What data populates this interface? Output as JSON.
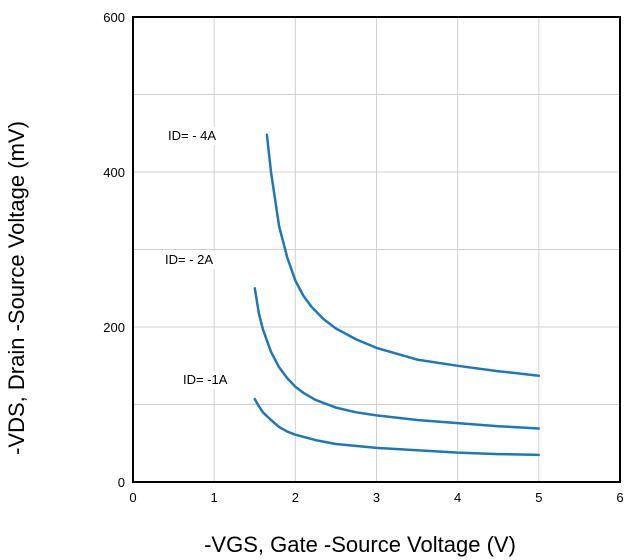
{
  "chart_data": {
    "type": "line",
    "xlabel": "-VGS, Gate -Source Voltage (V)",
    "ylabel": "-VDS, Drain -Source Voltage (mV)",
    "xlim": [
      0,
      6
    ],
    "ylim": [
      0,
      600
    ],
    "x_ticks": [
      "0",
      "1",
      "2",
      "3",
      "4",
      "5",
      "6"
    ],
    "y_ticks": [
      "0",
      "200",
      "400",
      "600"
    ],
    "grid": true,
    "line_color": "#1f77b4",
    "series": [
      {
        "annotation": "ID= - 4A",
        "x": [
          1.65,
          1.7,
          1.8,
          1.9,
          2.0,
          2.1,
          2.2,
          2.35,
          2.5,
          2.75,
          3.0,
          3.5,
          4.0,
          4.5,
          5.0
        ],
        "y": [
          448,
          400,
          330,
          290,
          260,
          240,
          226,
          210,
          198,
          184,
          173,
          158,
          150,
          143,
          137
        ]
      },
      {
        "annotation": "ID= - 2A",
        "x": [
          1.5,
          1.55,
          1.6,
          1.7,
          1.8,
          1.9,
          2.0,
          2.1,
          2.25,
          2.5,
          2.75,
          3.0,
          3.5,
          4.0,
          4.5,
          5.0
        ],
        "y": [
          250,
          218,
          197,
          168,
          148,
          134,
          123,
          115,
          106,
          96,
          90,
          86,
          80,
          76,
          72,
          69
        ]
      },
      {
        "annotation": "ID= -1A",
        "x": [
          1.5,
          1.55,
          1.6,
          1.7,
          1.8,
          1.9,
          2.0,
          2.25,
          2.5,
          3.0,
          3.5,
          4.0,
          4.5,
          5.0
        ],
        "y": [
          107,
          98,
          90,
          80,
          71,
          65,
          61,
          54,
          49,
          44,
          41,
          38,
          36,
          35
        ]
      }
    ]
  }
}
